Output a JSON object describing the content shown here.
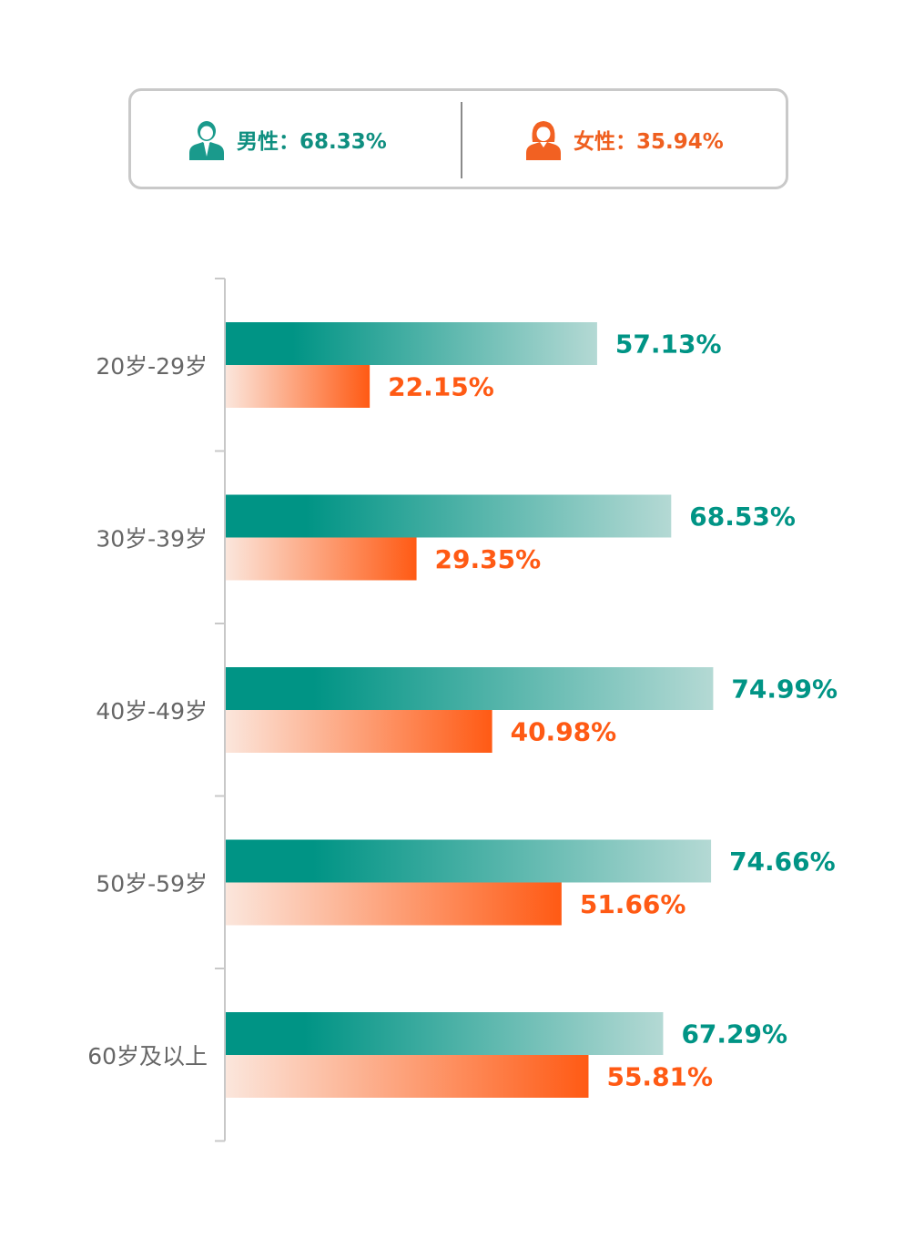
{
  "legend": {
    "male": "男性：68.33%",
    "female": "女性：35.94%"
  },
  "colors": {
    "male": "#009485",
    "female": "#ff5a14"
  },
  "icons": {
    "male": "male-avatar-icon",
    "female": "female-avatar-icon"
  },
  "chart_data": {
    "type": "bar",
    "orientation": "horizontal",
    "categories": [
      "20岁-29岁",
      "30岁-39岁",
      "40岁-49岁",
      "50岁-59岁",
      "60岁及以上"
    ],
    "series": [
      {
        "name": "男性",
        "values": [
          57.13,
          68.53,
          74.99,
          74.66,
          67.29
        ],
        "labels": [
          "57.13%",
          "68.53%",
          "74.99%",
          "74.66%",
          "67.29%"
        ]
      },
      {
        "name": "女性",
        "values": [
          22.15,
          29.35,
          40.98,
          51.66,
          55.81
        ],
        "labels": [
          "22.15%",
          "29.35%",
          "40.98%",
          "51.66%",
          "55.81%"
        ]
      }
    ],
    "xlim": [
      0,
      100
    ],
    "grid": false
  }
}
